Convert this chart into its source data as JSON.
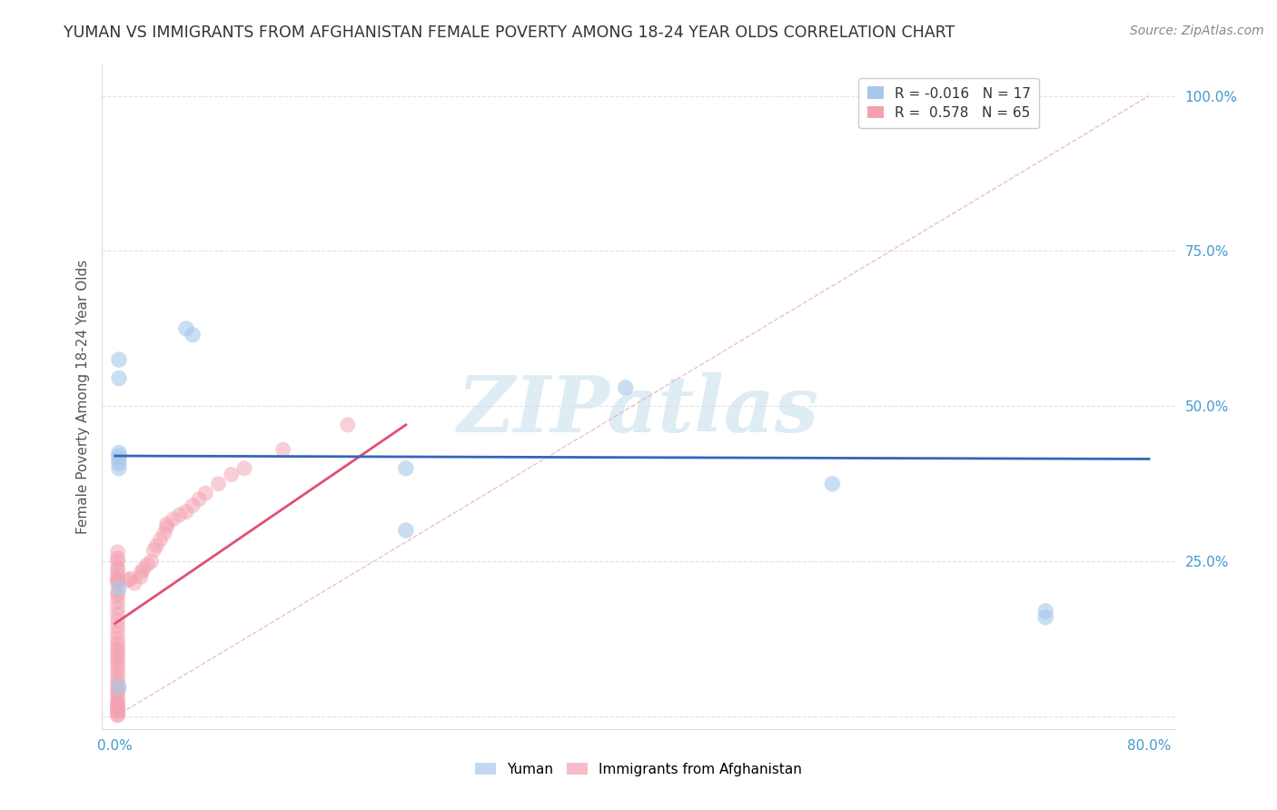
{
  "title": "YUMAN VS IMMIGRANTS FROM AFGHANISTAN FEMALE POVERTY AMONG 18-24 YEAR OLDS CORRELATION CHART",
  "source": "Source: ZipAtlas.com",
  "ylabel": "Female Poverty Among 18-24 Year Olds",
  "xlim": [
    -0.01,
    0.82
  ],
  "ylim": [
    -0.02,
    1.05
  ],
  "xticks": [
    0.0,
    0.2,
    0.4,
    0.6,
    0.8
  ],
  "yticks": [
    0.0,
    0.25,
    0.5,
    0.75,
    1.0
  ],
  "legend_entry1": "R = -0.016   N = 17",
  "legend_entry2": "R =  0.578   N = 65",
  "series1_name": "Yuman",
  "series2_name": "Immigrants from Afghanistan",
  "series1_color": "#a8c8ea",
  "series2_color": "#f4a0b0",
  "series1_line_color": "#3366bb",
  "series2_line_color": "#e05070",
  "ref_line_color": "#e8b0b8",
  "watermark": "ZIPatlas",
  "watermark_color": "#d0e4f0",
  "background_color": "#ffffff",
  "grid_color": "#e0e0e0",
  "yuman_x": [
    0.003,
    0.003,
    0.055,
    0.06,
    0.003,
    0.003,
    0.003,
    0.003,
    0.225,
    0.225,
    0.395,
    0.555,
    0.72,
    0.72,
    0.003,
    0.003,
    0.003
  ],
  "yuman_y": [
    0.575,
    0.545,
    0.625,
    0.615,
    0.425,
    0.415,
    0.408,
    0.4,
    0.3,
    0.4,
    0.53,
    0.375,
    0.17,
    0.16,
    0.048,
    0.207,
    0.42
  ],
  "afghan_x": [
    0.002,
    0.002,
    0.002,
    0.002,
    0.002,
    0.002,
    0.002,
    0.002,
    0.002,
    0.002,
    0.002,
    0.002,
    0.002,
    0.002,
    0.002,
    0.002,
    0.002,
    0.002,
    0.002,
    0.002,
    0.002,
    0.002,
    0.002,
    0.002,
    0.002,
    0.002,
    0.002,
    0.002,
    0.002,
    0.002,
    0.002,
    0.002,
    0.002,
    0.002,
    0.002,
    0.002,
    0.002,
    0.002,
    0.002,
    0.002,
    0.01,
    0.012,
    0.015,
    0.02,
    0.02,
    0.022,
    0.025,
    0.028,
    0.03,
    0.032,
    0.035,
    0.038,
    0.04,
    0.04,
    0.045,
    0.05,
    0.055,
    0.06,
    0.065,
    0.07,
    0.08,
    0.09,
    0.1,
    0.13,
    0.18
  ],
  "afghan_y": [
    0.195,
    0.185,
    0.175,
    0.165,
    0.155,
    0.145,
    0.135,
    0.125,
    0.118,
    0.11,
    0.105,
    0.098,
    0.092,
    0.085,
    0.078,
    0.07,
    0.062,
    0.055,
    0.048,
    0.04,
    0.038,
    0.03,
    0.025,
    0.02,
    0.018,
    0.015,
    0.01,
    0.008,
    0.003,
    0.002,
    0.22,
    0.215,
    0.2,
    0.22,
    0.228,
    0.235,
    0.24,
    0.25,
    0.255,
    0.265,
    0.22,
    0.222,
    0.215,
    0.225,
    0.232,
    0.238,
    0.245,
    0.25,
    0.268,
    0.275,
    0.285,
    0.295,
    0.305,
    0.31,
    0.318,
    0.325,
    0.33,
    0.34,
    0.35,
    0.36,
    0.375,
    0.39,
    0.4,
    0.43,
    0.47
  ],
  "yuman_trend_x": [
    0.0,
    0.8
  ],
  "yuman_trend_y": [
    0.42,
    0.415
  ],
  "afghan_trend_x0": 0.0,
  "afghan_trend_y0": 0.15,
  "afghan_trend_x1": 0.225,
  "afghan_trend_y1": 0.47,
  "ref_line_x": [
    0.0,
    0.8
  ],
  "ref_line_y": [
    0.0,
    1.0
  ]
}
